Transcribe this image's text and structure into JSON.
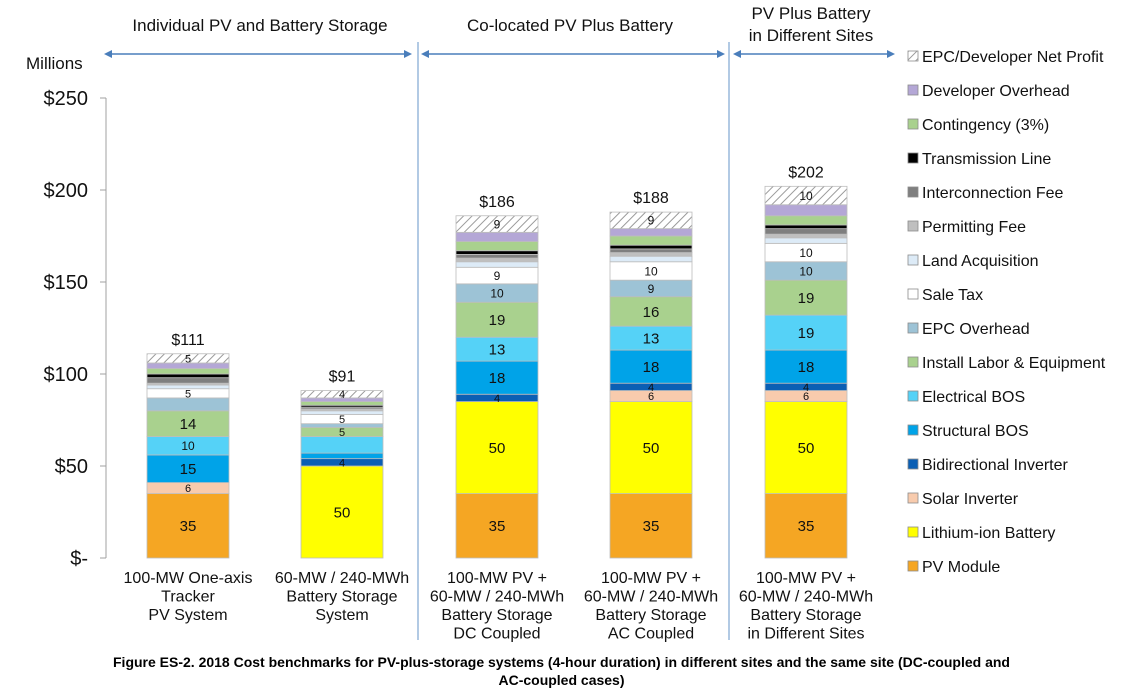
{
  "chart_data": {
    "type": "bar",
    "stacked": true,
    "ylabel": "Millions",
    "ylim": [
      0,
      250
    ],
    "yticks": [
      {
        "value": 0,
        "label": "$-"
      },
      {
        "value": 50,
        "label": "$50"
      },
      {
        "value": 100,
        "label": "$100"
      },
      {
        "value": 150,
        "label": "$150"
      },
      {
        "value": 200,
        "label": "$200"
      },
      {
        "value": 250,
        "label": "$250"
      }
    ],
    "sections": [
      {
        "label": [
          "Individual PV and Battery Storage"
        ]
      },
      {
        "label": [
          "Co-located PV Plus Battery"
        ]
      },
      {
        "label": [
          "PV Plus Battery",
          "in Different Sites"
        ]
      }
    ],
    "categories": [
      {
        "label": [
          "100-MW One-axis",
          "Tracker",
          "PV System"
        ],
        "total": "$111"
      },
      {
        "label": [
          "60-MW / 240-MWh",
          "Battery Storage",
          "System"
        ],
        "total": "$91"
      },
      {
        "label": [
          "100-MW PV +",
          "60-MW / 240-MWh",
          "Battery Storage",
          "DC Coupled"
        ],
        "total": "$186"
      },
      {
        "label": [
          "100-MW PV +",
          "60-MW / 240-MWh",
          "Battery Storage",
          "AC Coupled"
        ],
        "total": "$188"
      },
      {
        "label": [
          "100-MW PV +",
          "60-MW / 240-MWh",
          "Battery Storage",
          "in Different Sites"
        ],
        "total": "$202"
      }
    ],
    "series": [
      {
        "name": "PV Module",
        "color": "#F5A623",
        "values": [
          35,
          0,
          35,
          35,
          35
        ],
        "labels": [
          "35",
          "",
          "35",
          "35",
          "35"
        ]
      },
      {
        "name": "Lithium-ion Battery",
        "color": "#FFFF00",
        "values": [
          0,
          50,
          50,
          50,
          50
        ],
        "labels": [
          "",
          "50",
          "50",
          "50",
          "50"
        ]
      },
      {
        "name": "Solar Inverter",
        "color": "#F8CBAD",
        "values": [
          6,
          0,
          0,
          6,
          6
        ],
        "labels": [
          "6",
          "",
          "",
          "6",
          "6"
        ]
      },
      {
        "name": "Bidirectional Inverter",
        "color": "#0B5FB4",
        "values": [
          0,
          4,
          4,
          4,
          4
        ],
        "labels": [
          "",
          "4",
          "4",
          "4",
          "4"
        ]
      },
      {
        "name": "Structural BOS",
        "color": "#00A3E8",
        "values": [
          15,
          3,
          18,
          18,
          18
        ],
        "labels": [
          "15",
          "",
          "18",
          "18",
          "18"
        ]
      },
      {
        "name": "Electrical BOS",
        "color": "#55D2F7",
        "values": [
          10,
          9,
          13,
          13,
          19
        ],
        "labels": [
          "10",
          "",
          "13",
          "13",
          "19"
        ]
      },
      {
        "name": "Install Labor & Equipment",
        "color": "#A9D18E",
        "values": [
          14,
          5,
          19,
          16,
          19
        ],
        "labels": [
          "14",
          "5",
          "19",
          "16",
          "19"
        ]
      },
      {
        "name": "EPC Overhead",
        "color": "#9DC3D6",
        "values": [
          7,
          2,
          10,
          9,
          10
        ],
        "labels": [
          "",
          "",
          "10",
          "9",
          "10"
        ]
      },
      {
        "name": "Sale Tax",
        "color": "#FFFFFF",
        "values": [
          5,
          5,
          9,
          10,
          10
        ],
        "labels": [
          "5",
          "5",
          "9",
          "10",
          "10"
        ]
      },
      {
        "name": "Land Acquisition",
        "color": "#DDEBF7",
        "values": [
          2,
          2,
          3,
          3,
          3
        ],
        "labels": [
          "",
          "",
          "",
          "",
          ""
        ]
      },
      {
        "name": "Permitting Fee",
        "color": "#BFBFBF",
        "values": [
          1,
          1,
          2,
          2,
          2
        ],
        "labels": [
          "",
          "",
          "",
          "",
          ""
        ]
      },
      {
        "name": "Interconnection Fee",
        "color": "#7F7F7F",
        "values": [
          3,
          1,
          2,
          2,
          3
        ],
        "labels": [
          "",
          "",
          "",
          "",
          ""
        ]
      },
      {
        "name": "Transmission Line",
        "color": "#000000",
        "values": [
          2,
          1,
          2,
          2,
          2
        ],
        "labels": [
          "",
          "",
          "",
          "",
          ""
        ]
      },
      {
        "name": "Contingency (3%)",
        "color": "#A9D18E",
        "values": [
          3,
          2,
          5,
          5,
          5
        ],
        "labels": [
          "",
          "",
          "",
          "",
          ""
        ]
      },
      {
        "name": "Developer Overhead",
        "color": "#B4A7D6",
        "values": [
          3,
          2,
          5,
          4,
          6
        ],
        "labels": [
          "",
          "",
          "",
          "",
          ""
        ]
      },
      {
        "name": "EPC/Developer Net Profit",
        "color": "hatch",
        "values": [
          5,
          4,
          9,
          9,
          10
        ],
        "labels": [
          "5",
          "4",
          "9",
          "9",
          "10"
        ]
      }
    ],
    "legend_order": [
      15,
      14,
      13,
      12,
      11,
      10,
      9,
      8,
      7,
      6,
      5,
      4,
      3,
      2,
      1,
      0
    ],
    "legend_position": "right"
  },
  "caption": [
    "Figure ES-2. 2018 Cost benchmarks for PV-plus-storage systems (4-hour duration) in different sites and the same site (DC-coupled and",
    "AC-coupled cases)"
  ]
}
